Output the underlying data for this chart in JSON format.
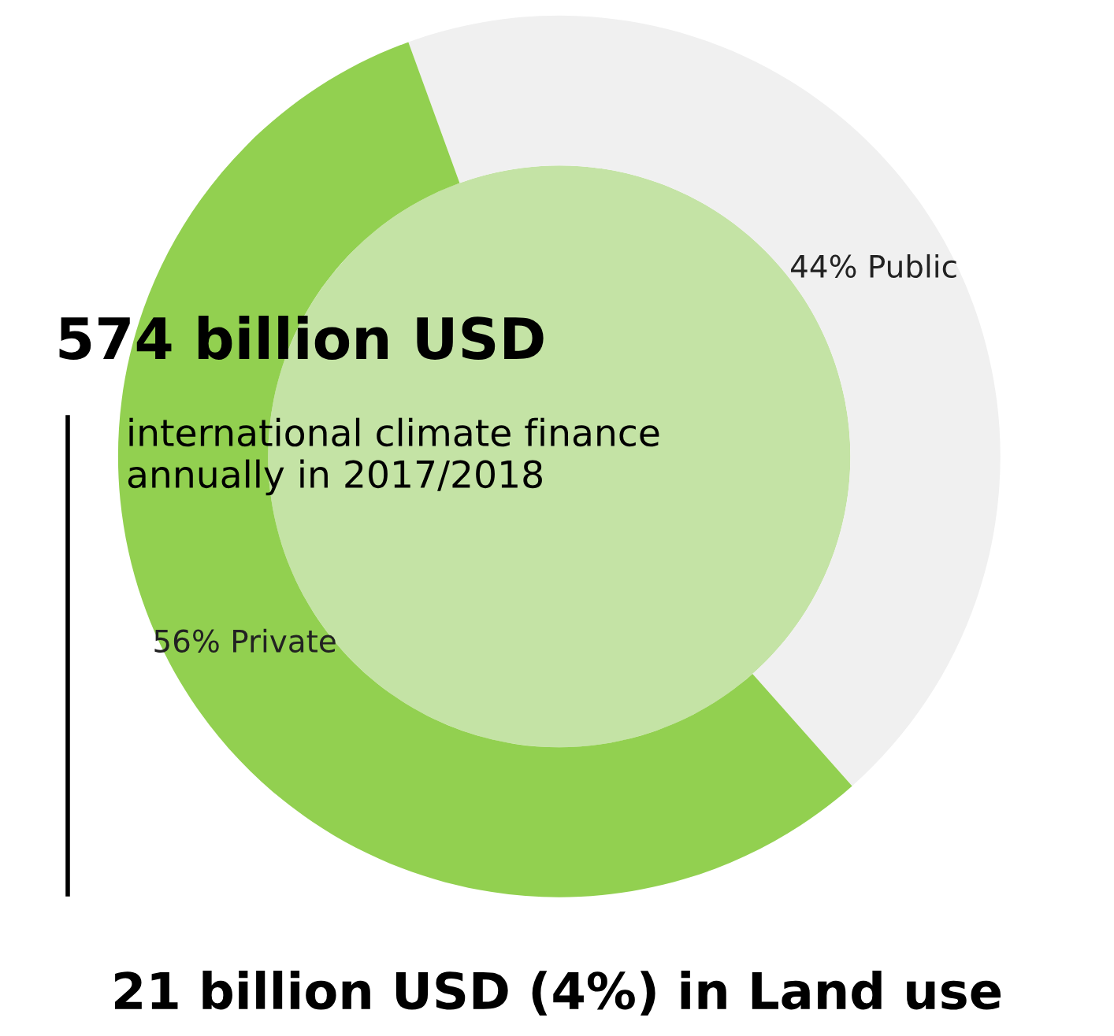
{
  "chart_data": {
    "type": "donut",
    "title": "574 billion USD",
    "subtitle": "international climate finance\nannually in 2017/2018",
    "categories": [
      "Public",
      "Private"
    ],
    "values": [
      44,
      56
    ],
    "value_labels": [
      "44%",
      "56%"
    ],
    "colors": [
      "#f0f0f0",
      "#92d050"
    ],
    "annotations": [
      "21 billion USD (4%) in Land use"
    ]
  }
}
